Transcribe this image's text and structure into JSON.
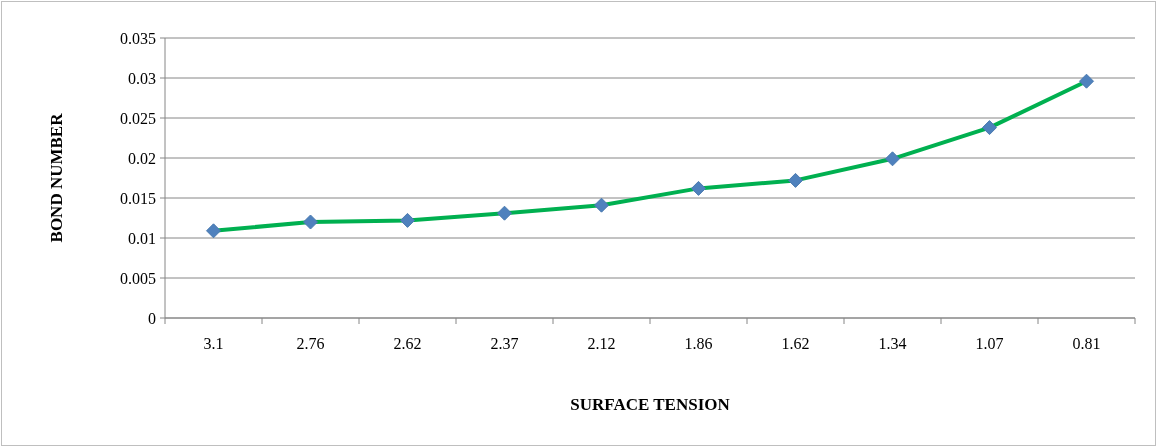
{
  "chart_data": {
    "type": "line",
    "xlabel": "SURFACE TENSION",
    "ylabel": "BOND NUMBER",
    "categories": [
      "3.1",
      "2.76",
      "2.62",
      "2.37",
      "2.12",
      "1.86",
      "1.62",
      "1.34",
      "1.07",
      "0.81"
    ],
    "series": [
      {
        "color": "#00b050",
        "values": [
          0.0109,
          0.012,
          0.0122,
          0.0131,
          0.0141,
          0.0162,
          0.0172,
          0.0199,
          0.0238,
          0.0296
        ]
      }
    ],
    "ylim": [
      0,
      0.035
    ],
    "yticks": [
      0,
      0.005,
      0.01,
      0.015,
      0.02,
      0.025,
      0.03,
      0.035
    ],
    "grid": "y",
    "marker": "diamond",
    "line_style": "solid"
  }
}
